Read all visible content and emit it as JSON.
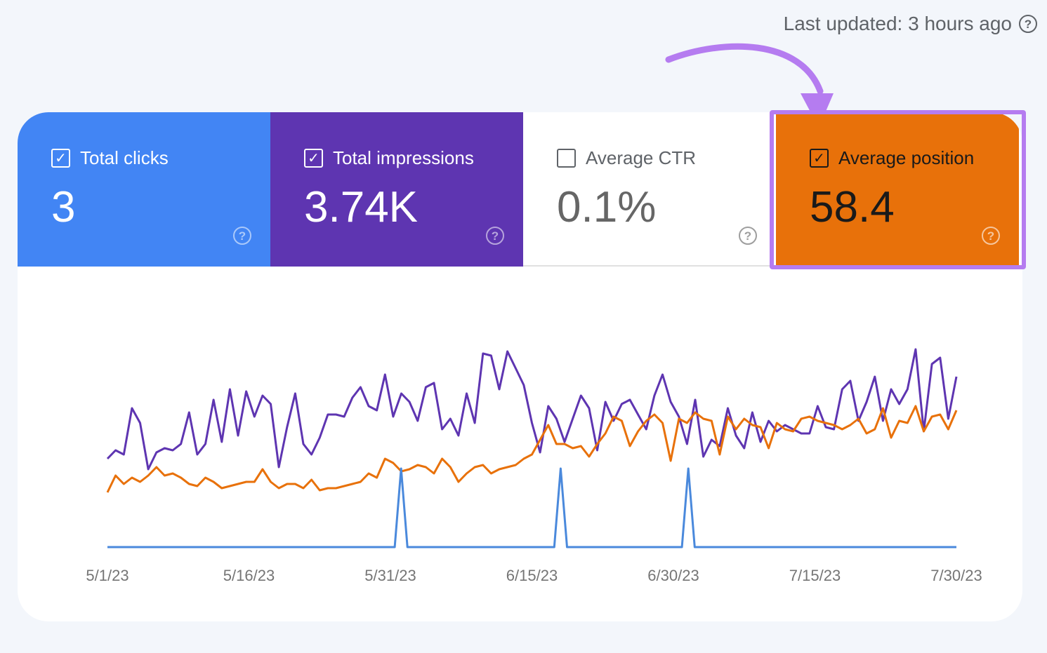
{
  "header": {
    "last_updated": "Last updated: 3 hours ago"
  },
  "metrics": [
    {
      "label": "Total clicks",
      "value": "3",
      "checked": true,
      "color": "#4285f4"
    },
    {
      "label": "Total impressions",
      "value": "3.74K",
      "checked": true,
      "color": "#5e35b1"
    },
    {
      "label": "Average CTR",
      "value": "0.1%",
      "checked": false,
      "color": "#ffffff"
    },
    {
      "label": "Average position",
      "value": "58.4",
      "checked": true,
      "color": "#e8710a"
    }
  ],
  "icons": {
    "check": "✓",
    "help": "?"
  },
  "colors": {
    "clicks_line": "#4a89dc",
    "impressions_line": "#5e35b1",
    "position_line": "#e8710a",
    "highlight": "#b57cf0"
  },
  "chart_data": {
    "type": "line",
    "x_tick_labels": [
      "5/1/23",
      "5/16/23",
      "5/31/23",
      "6/15/23",
      "6/30/23",
      "7/15/23",
      "7/30/23"
    ],
    "x_range": [
      "5/1/23",
      "7/30/23"
    ],
    "grid": false,
    "series": [
      {
        "key": "impressions",
        "color": "#5e35b1",
        "values": [
          42,
          46,
          44,
          66,
          59,
          37,
          45,
          47,
          46,
          49,
          64,
          44,
          49,
          70,
          50,
          75,
          53,
          74,
          62,
          72,
          68,
          38,
          57,
          73,
          49,
          44,
          52,
          63,
          63,
          62,
          71,
          76,
          67,
          65,
          82,
          62,
          73,
          69,
          60,
          76,
          78,
          56,
          61,
          53,
          73,
          59,
          92,
          91,
          75,
          93,
          85,
          77,
          59,
          45,
          67,
          61,
          50,
          61,
          72,
          66,
          46,
          69,
          60,
          68,
          70,
          63,
          56,
          72,
          82,
          69,
          62,
          49,
          70,
          43,
          51,
          48,
          66,
          53,
          47,
          64,
          50,
          60,
          55,
          58,
          56,
          54,
          54,
          67,
          57,
          56,
          75,
          79,
          60,
          69,
          81,
          60,
          75,
          68,
          75,
          94,
          55,
          87,
          90,
          61,
          81
        ],
        "scale_max": 100
      },
      {
        "key": "position",
        "color": "#e8710a",
        "values": [
          26,
          34,
          30,
          33,
          31,
          34,
          38,
          34,
          35,
          33,
          30,
          29,
          33,
          31,
          28,
          29,
          30,
          31,
          31,
          37,
          31,
          28,
          30,
          30,
          28,
          32,
          27,
          28,
          28,
          29,
          30,
          31,
          35,
          33,
          42,
          40,
          36,
          37,
          39,
          38,
          35,
          42,
          38,
          31,
          35,
          38,
          39,
          35,
          37,
          38,
          39,
          42,
          44,
          51,
          58,
          49,
          49,
          47,
          48,
          43,
          49,
          54,
          62,
          60,
          48,
          55,
          60,
          63,
          59,
          41,
          61,
          59,
          64,
          61,
          60,
          44,
          62,
          56,
          61,
          58,
          57,
          47,
          59,
          56,
          55,
          61,
          62,
          60,
          59,
          58,
          56,
          58,
          61,
          54,
          56,
          66,
          52,
          60,
          59,
          67,
          55,
          62,
          63,
          56,
          65
        ],
        "scale_max": 100
      },
      {
        "key": "clicks",
        "color": "#4a89dc",
        "values": [
          0,
          0,
          0,
          0,
          0,
          0,
          0,
          0,
          0,
          0,
          0,
          0,
          0,
          0,
          0,
          0,
          0,
          0,
          0,
          0,
          0,
          0,
          0,
          0,
          0,
          0,
          0,
          0,
          0,
          0,
          0,
          0,
          0,
          0,
          0,
          0,
          0,
          0,
          0,
          0,
          0,
          0,
          0,
          0,
          0,
          0,
          1,
          0,
          0,
          0,
          0,
          0,
          0,
          0,
          0,
          0,
          0,
          0,
          0,
          0,
          0,
          0,
          0,
          0,
          0,
          0,
          0,
          0,
          0,
          0,
          0,
          1,
          0,
          0,
          0,
          0,
          0,
          0,
          0,
          0,
          0,
          0,
          0,
          0,
          0,
          0,
          0,
          0,
          0,
          0,
          0,
          1,
          0,
          0,
          0,
          0,
          0,
          0,
          0,
          0,
          0,
          0,
          0,
          0,
          0,
          0,
          0,
          0,
          0,
          0,
          0,
          0,
          0,
          0,
          0,
          0,
          0,
          0,
          0,
          0,
          0,
          0,
          0,
          0,
          0,
          0,
          0,
          0,
          0,
          0,
          0,
          0,
          0,
          0
        ],
        "scale_max": 1
      }
    ]
  }
}
